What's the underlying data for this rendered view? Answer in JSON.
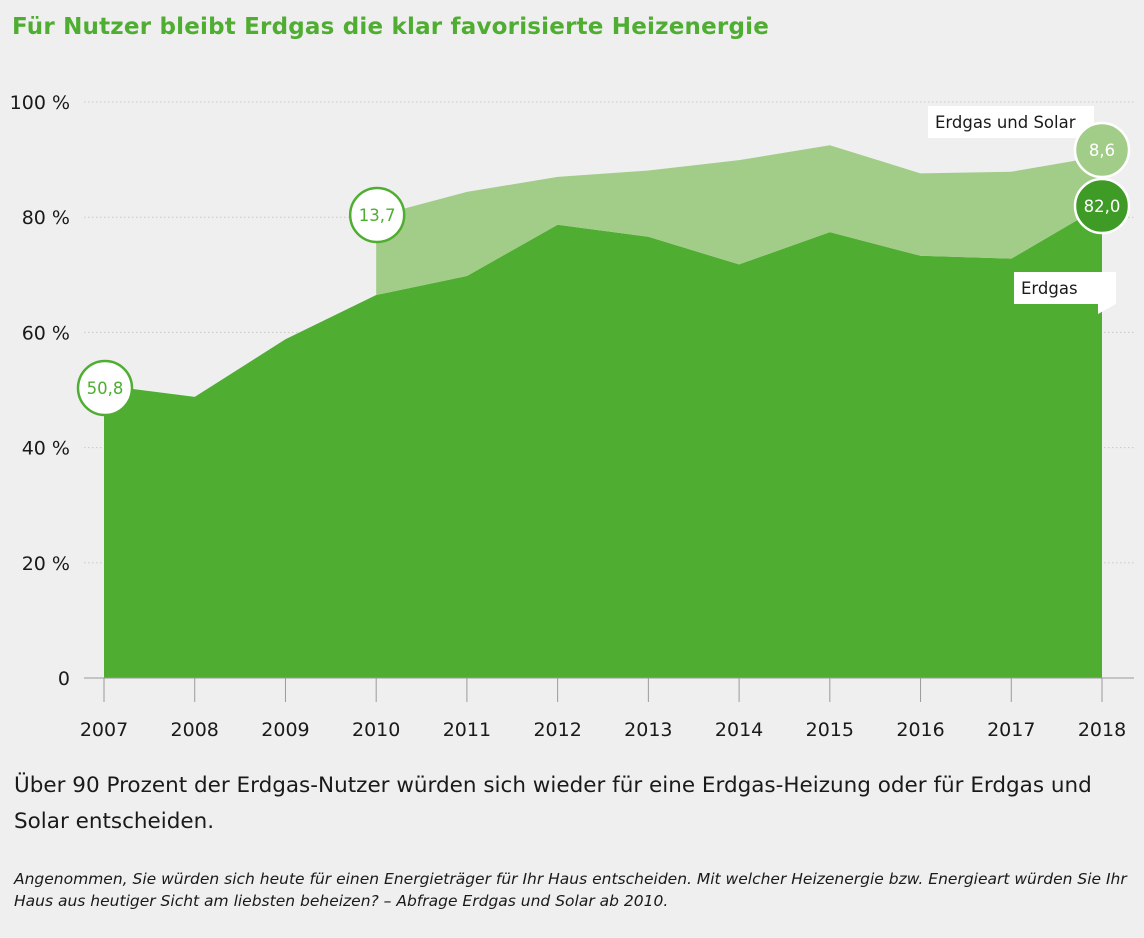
{
  "header": {
    "title": "Für Nutzer bleibt Erdgas die klar favorisierte Heizenergie"
  },
  "summary": "Über 90 Prozent der Erdgas-Nutzer würden sich wieder für eine Erdgas-Heizung oder für Erdgas und Solar entscheiden.",
  "source_note": "Angenommen, Sie würden sich heute für einen Energieträger für Ihr Haus entscheiden. Mit welcher Heizenergie bzw. Energieart würden Sie Ihr Haus aus heutiger Sicht am liebsten beheizen? – Abfrage Erdgas und Solar ab 2010.",
  "colors": {
    "accent": "#4fae32",
    "erdgas": "#4fae32",
    "solar": "#a2cd88",
    "background": "#efefef"
  },
  "chart_data": {
    "type": "area",
    "stacked": true,
    "title": "Für Nutzer bleibt Erdgas die klar favorisierte Heizenergie",
    "x": [
      "2007",
      "2008",
      "2009",
      "2010",
      "2011",
      "2012",
      "2013",
      "2014",
      "2015",
      "2016",
      "2017",
      "2018"
    ],
    "ylim": [
      0,
      100
    ],
    "y_ticks": [
      0,
      20,
      40,
      60,
      80,
      100
    ],
    "y_tick_labels": [
      "0",
      "20 %",
      "40 %",
      "60 %",
      "80 %",
      "100 %"
    ],
    "grid": true,
    "series": [
      {
        "name": "Erdgas",
        "color": "#4fae32",
        "values": [
          50.8,
          48.8,
          58.8,
          66.5,
          69.8,
          78.7,
          76.6,
          71.8,
          77.4,
          73.3,
          72.8,
          82.0
        ]
      },
      {
        "name": "Erdgas und Solar",
        "color": "#a2cd88",
        "values": [
          null,
          null,
          null,
          13.7,
          14.6,
          8.3,
          11.5,
          18.1,
          15.1,
          14.3,
          15.1,
          8.6
        ]
      }
    ],
    "annotations": [
      {
        "x": "2007",
        "series": "Erdgas",
        "label": "50,8"
      },
      {
        "x": "2010",
        "series": "Erdgas und Solar",
        "label": "13,7"
      },
      {
        "x": "2018",
        "series": "Erdgas und Solar",
        "label": "8,6"
      },
      {
        "x": "2018",
        "series": "Erdgas",
        "label": "82,0"
      }
    ]
  }
}
